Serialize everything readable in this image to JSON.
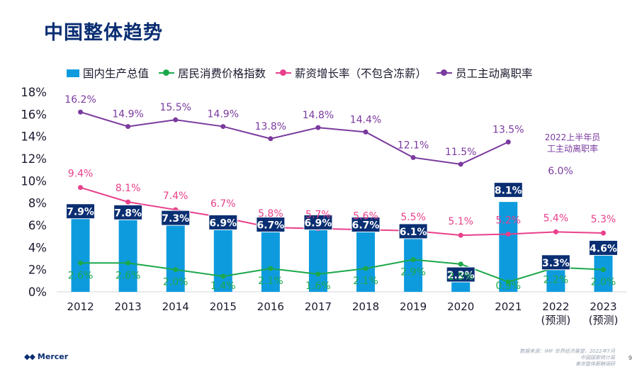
{
  "title": "中国整体趋势",
  "legend": [
    {
      "label": "国内生产总值",
      "kind": "bar",
      "color": "#0e9bde"
    },
    {
      "label": "居民消费价格指数",
      "kind": "line",
      "color": "#1ba84a"
    },
    {
      "label": "薪资增长率（不包含冻薪）",
      "kind": "line",
      "color": "#e8408a"
    },
    {
      "label": "员工主动离职率",
      "kind": "line",
      "color": "#7a3a9e"
    }
  ],
  "chart_data": {
    "type": "bar",
    "categories": [
      "2012",
      "2013",
      "2014",
      "2015",
      "2016",
      "2017",
      "2018",
      "2019",
      "2020",
      "2021",
      "2022\n(预测)",
      "2023\n(预测)"
    ],
    "ylim": [
      0,
      18
    ],
    "yticks": [
      "0%",
      "2%",
      "4%",
      "6%",
      "8%",
      "10%",
      "12%",
      "14%",
      "16%",
      "18%"
    ],
    "series": [
      {
        "name": "国内生产总值",
        "kind": "bar",
        "color": "#0e9bde",
        "values": [
          7.9,
          7.8,
          7.3,
          6.9,
          6.7,
          6.9,
          6.7,
          6.1,
          2.2,
          8.1,
          3.3,
          4.6
        ],
        "labels": [
          "7.9%",
          "7.8%",
          "7.3%",
          "6.9%",
          "6.7%",
          "6.9%",
          "6.7%",
          "6.1%",
          "2.2%",
          "8.1%",
          "3.3%",
          "4.6%"
        ]
      },
      {
        "name": "居民消费价格指数",
        "kind": "line",
        "color": "#1ba84a",
        "values": [
          2.6,
          2.6,
          2.0,
          1.4,
          2.1,
          1.6,
          2.1,
          2.9,
          2.5,
          0.9,
          2.2,
          2.0
        ],
        "labels": [
          "2.6%",
          "2.6%",
          "2.0%",
          "1.4%",
          "2.1%",
          "1.6%",
          "2.1%",
          "2.9%",
          "2.5%",
          "0.9%",
          "2.2%",
          "2.0%"
        ]
      },
      {
        "name": "薪资增长率（不包含冻薪）",
        "kind": "line",
        "color": "#e8408a",
        "values": [
          9.4,
          8.1,
          7.4,
          6.7,
          5.8,
          5.7,
          5.6,
          5.5,
          5.1,
          5.2,
          5.4,
          5.3
        ],
        "labels": [
          "9.4%",
          "8.1%",
          "7.4%",
          "6.7%",
          "5.8%",
          "5.7%",
          "5.6%",
          "5.5%",
          "5.1%",
          "5.2%",
          "5.4%",
          "5.3%"
        ]
      },
      {
        "name": "员工主动离职率",
        "kind": "line",
        "color": "#7a3a9e",
        "values": [
          16.2,
          14.9,
          15.5,
          14.9,
          13.8,
          14.8,
          14.4,
          12.1,
          11.5,
          13.5,
          null,
          null
        ],
        "labels": [
          "16.2%",
          "14.9%",
          "15.5%",
          "14.9%",
          "13.8%",
          "14.8%",
          "14.4%",
          "12.1%",
          "11.5%",
          "13.5%",
          null,
          null
        ]
      }
    ],
    "annotation": {
      "text_lines": [
        "2022上半年员",
        "工主动离职率"
      ],
      "value": "6.0%",
      "color": "#7a3a9e"
    }
  },
  "footer": {
    "logo": "Mercer",
    "source_lines": [
      "数据来源：IMF 世界经济展望，2022年7月",
      "中国国家统计局",
      "美世整体薪酬调研"
    ],
    "page_number": "9"
  }
}
